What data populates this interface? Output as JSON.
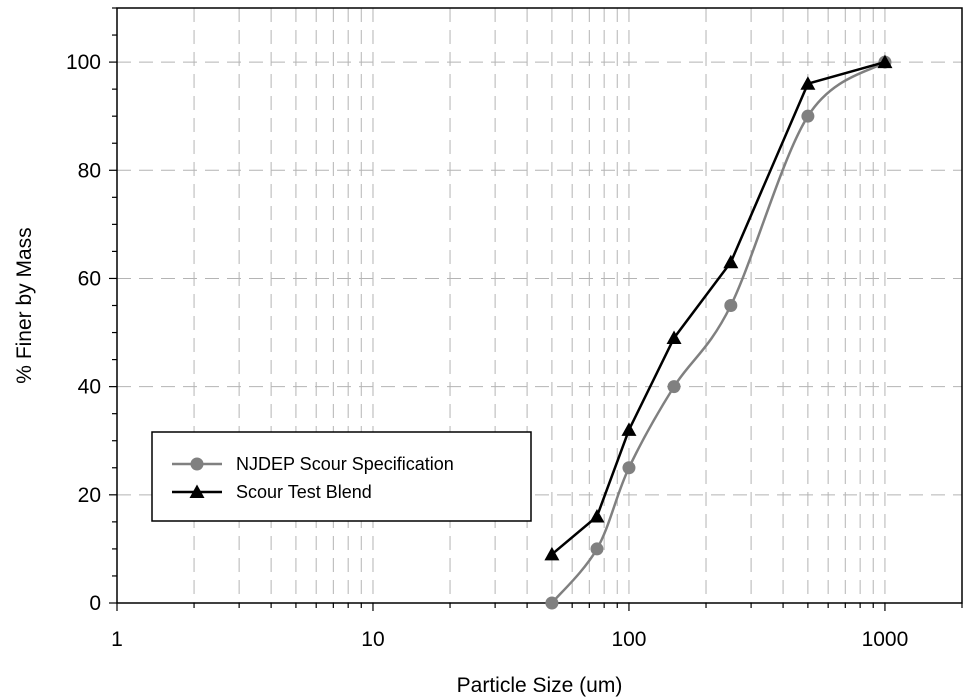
{
  "chart_data": {
    "type": "scatter",
    "title": "",
    "xlabel": "Particle Size (um)",
    "ylabel": "% Finer by Mass",
    "xscale": "log",
    "xlim": [
      1,
      2000
    ],
    "ylim": [
      0,
      110
    ],
    "x_ticks": [
      1,
      10,
      100,
      1000
    ],
    "x_tick_labels": [
      "1",
      "10",
      "100",
      "1000"
    ],
    "y_ticks": [
      0,
      20,
      40,
      60,
      80,
      100
    ],
    "y_tick_labels": [
      "0",
      "20",
      "40",
      "60",
      "80",
      "100"
    ],
    "grid": true,
    "legend_position": "lower-left",
    "series": [
      {
        "name": "NJDEP Scour Specification",
        "color": "#808080",
        "marker": "circle",
        "line": "smooth",
        "x": [
          50,
          75,
          100,
          150,
          250,
          500,
          1000
        ],
        "y": [
          0,
          10,
          25,
          40,
          55,
          90,
          100
        ]
      },
      {
        "name": "Scour Test Blend",
        "color": "#000000",
        "marker": "triangle",
        "line": "straight",
        "x": [
          50,
          75,
          100,
          150,
          250,
          500,
          1000
        ],
        "y": [
          9,
          16,
          32,
          49,
          63,
          96,
          100
        ]
      }
    ]
  }
}
